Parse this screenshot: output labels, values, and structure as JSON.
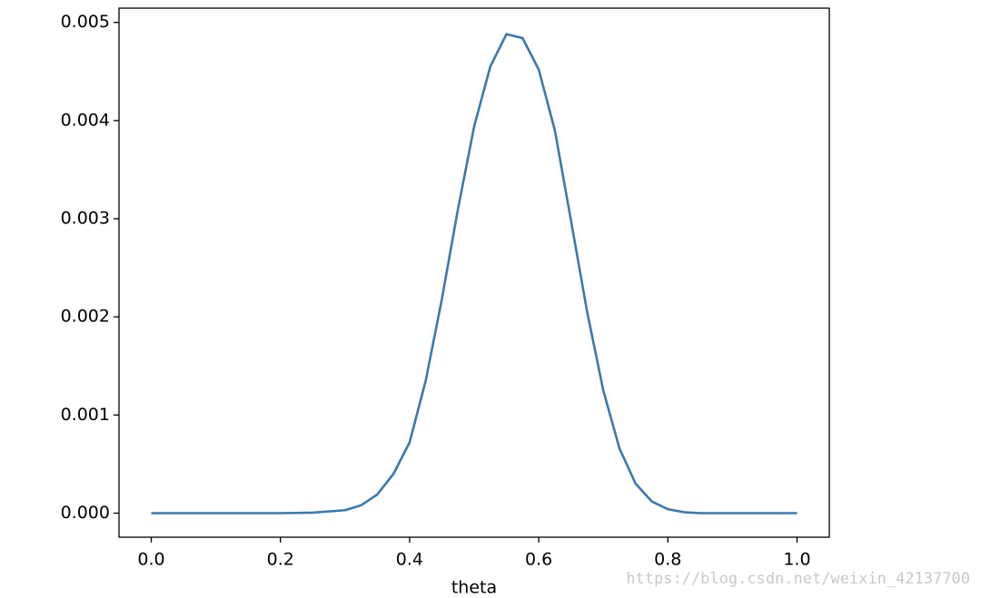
{
  "chart_data": {
    "type": "line",
    "x_label": "theta",
    "x": [
      0,
      0.1,
      0.2,
      0.25,
      0.3,
      0.325,
      0.35,
      0.375,
      0.4,
      0.425,
      0.45,
      0.475,
      0.5,
      0.525,
      0.55,
      0.575,
      0.6,
      0.625,
      0.65,
      0.675,
      0.7,
      0.725,
      0.75,
      0.775,
      0.8,
      0.825,
      0.85,
      0.9,
      1.0
    ],
    "series": [
      {
        "color": "#3a78b0",
        "values": [
          0,
          0,
          0,
          5e-06,
          3e-05,
          8e-05,
          0.00019,
          0.0004,
          0.00072,
          0.00135,
          0.00218,
          0.0031,
          0.00394,
          0.00455,
          0.00488,
          0.00484,
          0.00452,
          0.0039,
          0.00298,
          0.00205,
          0.00125,
          0.00066,
          0.0003,
          0.00012,
          4e-05,
          1e-05,
          0,
          0,
          0
        ]
      }
    ],
    "xlim": [
      -0.05,
      1.05
    ],
    "xticks": [
      {
        "value": 0,
        "label": "0.0"
      },
      0.2,
      0.4,
      0.6,
      0.8,
      {
        "value": 1,
        "label": "1.0"
      }
    ],
    "ylim": [
      -0.000245,
      0.005145
    ],
    "yticks": [
      {
        "value": 0,
        "label": "0.000"
      },
      0.001,
      0.002,
      0.003,
      0.004,
      0.005
    ],
    "grid": false
  },
  "watermark": "https://blog.csdn.net/weixin_42137700"
}
